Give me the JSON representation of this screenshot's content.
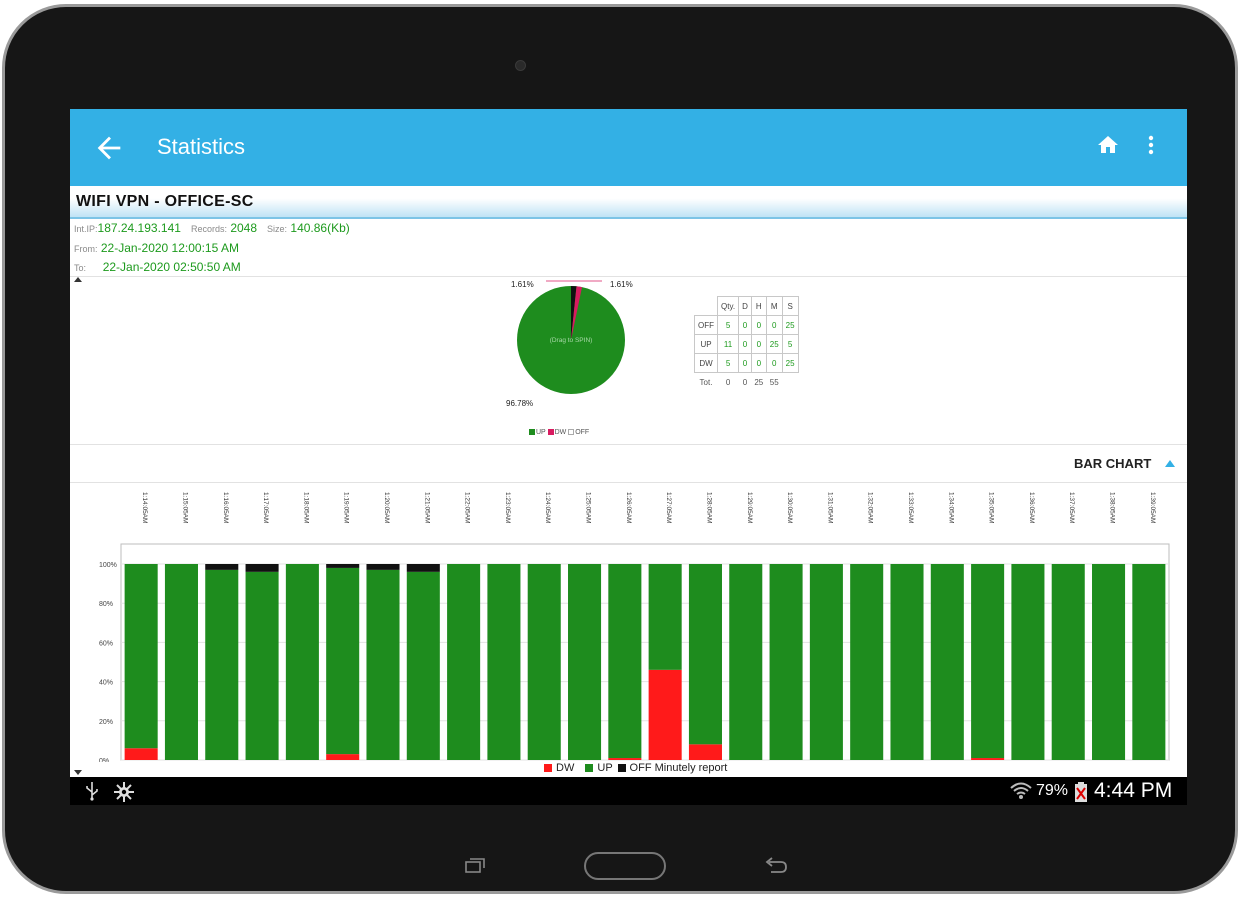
{
  "appbar": {
    "title": "Statistics",
    "color": "#33b0e5"
  },
  "network": {
    "name": "WIFI VPN - OFFICE-SC"
  },
  "info": {
    "int_ip_label": "Int.IP:",
    "int_ip": "187.24.193.141",
    "records_label": "Records:",
    "records": "2048",
    "size_label": "Size:",
    "size": "140.86(Kb)",
    "from_label": "From:",
    "from": "22-Jan-2020 12:00:15 AM",
    "to_label": "To:",
    "to": "22-Jan-2020 02:50:50 AM"
  },
  "pie": {
    "label_top_left": "1.61%",
    "label_top_right": "1.61%",
    "label_bottom": "96.78%",
    "center_text": "(Drag to SPIN)",
    "slices": [
      {
        "name": "UP",
        "percent": 96.78,
        "color": "#1e8c1e"
      },
      {
        "name": "DW",
        "percent": 1.61,
        "color": "#d81b60"
      },
      {
        "name": "OFF",
        "percent": 1.61,
        "color": "#111111"
      }
    ],
    "legend": [
      "UP",
      "DW",
      "OFF"
    ]
  },
  "stats_table": {
    "headers": [
      "Qty.",
      "D",
      "H",
      "M",
      "S"
    ],
    "rows": [
      {
        "label": "OFF",
        "values": [
          "5",
          "0",
          "0",
          "0",
          "25"
        ]
      },
      {
        "label": "UP",
        "values": [
          "11",
          "0",
          "0",
          "25",
          "5"
        ]
      },
      {
        "label": "DW",
        "values": [
          "5",
          "0",
          "0",
          "0",
          "25"
        ]
      }
    ],
    "total": {
      "label": "Tot.",
      "values": [
        "0",
        "0",
        "25",
        "55"
      ]
    }
  },
  "bar_chart": {
    "title": "BAR CHART"
  },
  "chart_data": {
    "type": "bar",
    "title": "BAR CHART",
    "stacked": true,
    "categories": [
      "1:14:05AM",
      "1:15:05AM",
      "1:16:05AM",
      "1:17:05AM",
      "1:18:05AM",
      "1:19:05AM",
      "1:20:05AM",
      "1:21:05AM",
      "1:22:05AM",
      "1:23:05AM",
      "1:24:05AM",
      "1:25:05AM",
      "1:26:05AM",
      "1:27:05AM",
      "1:28:05AM",
      "1:29:05AM",
      "1:30:05AM",
      "1:31:05AM",
      "1:32:05AM",
      "1:33:05AM",
      "1:34:05AM",
      "1:35:05AM",
      "1:36:05AM",
      "1:37:05AM",
      "1:38:05AM",
      "1:39:05AM"
    ],
    "y_ticks": [
      "100%",
      "80%",
      "60%",
      "40%",
      "20%",
      "0%"
    ],
    "ylim": [
      0,
      100
    ],
    "series": [
      {
        "name": "DW",
        "color": "#ff1a1a",
        "values": [
          6,
          0,
          0,
          0,
          0,
          3,
          0,
          0,
          0,
          0,
          0,
          0,
          1,
          46,
          8,
          0,
          0,
          0,
          0,
          0,
          0,
          1,
          0,
          0,
          0,
          0
        ]
      },
      {
        "name": "UP",
        "color": "#1e8c1e",
        "values": [
          94,
          100,
          97,
          96,
          100,
          95,
          97,
          96,
          100,
          100,
          100,
          100,
          99,
          54,
          92,
          100,
          100,
          100,
          100,
          100,
          100,
          99,
          100,
          100,
          100,
          100
        ]
      },
      {
        "name": "OFF",
        "color": "#111111",
        "values": [
          0,
          0,
          3,
          4,
          0,
          2,
          3,
          4,
          0,
          0,
          0,
          0,
          0,
          0,
          0,
          0,
          0,
          0,
          0,
          0,
          0,
          0,
          0,
          0,
          0,
          0
        ]
      }
    ],
    "legend_note": "Minutely report",
    "grid": true
  },
  "statusbar": {
    "battery": "79%",
    "time": "4:44 PM"
  }
}
